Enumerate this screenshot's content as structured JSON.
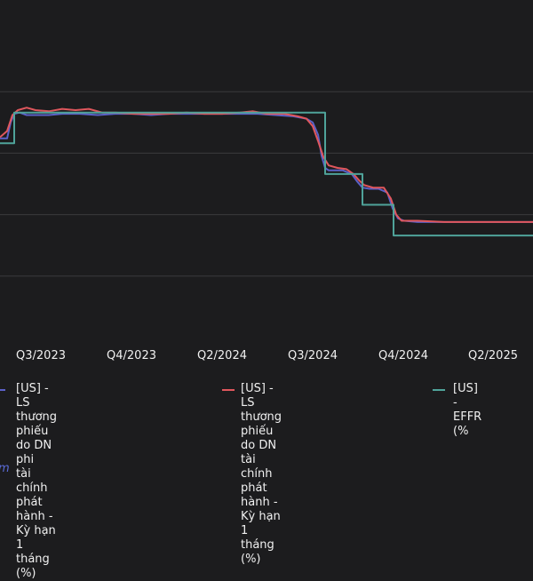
{
  "chart_data": {
    "type": "line",
    "x_tick_labels": [
      "Q3/2023",
      "Q4/2023",
      "Q2/2024",
      "Q3/2024",
      "Q4/2024",
      "Q2/2025"
    ],
    "ylim": [
      3.5,
      6.0
    ],
    "y_gridlines": [
      4.0,
      4.5,
      5.0,
      5.5
    ],
    "grid": "horizontal",
    "legend_position": "bottom",
    "series": [
      {
        "name": "[US] - LS thương phiếu do DN phi tài chính phát hành - Kỳ hạn 1 tháng (%)",
        "color": "#5b61c8",
        "points": [
          [
            0,
            5.12
          ],
          [
            8,
            5.12
          ],
          [
            12,
            5.25
          ],
          [
            16,
            5.32
          ],
          [
            22,
            5.33
          ],
          [
            30,
            5.31
          ],
          [
            40,
            5.31
          ],
          [
            55,
            5.31
          ],
          [
            70,
            5.32
          ],
          [
            90,
            5.32
          ],
          [
            110,
            5.31
          ],
          [
            130,
            5.32
          ],
          [
            150,
            5.32
          ],
          [
            170,
            5.31
          ],
          [
            190,
            5.32
          ],
          [
            210,
            5.32
          ],
          [
            230,
            5.32
          ],
          [
            250,
            5.32
          ],
          [
            270,
            5.32
          ],
          [
            290,
            5.32
          ],
          [
            310,
            5.31
          ],
          [
            330,
            5.3
          ],
          [
            345,
            5.28
          ],
          [
            352,
            5.25
          ],
          [
            358,
            5.15
          ],
          [
            362,
            4.98
          ],
          [
            366,
            4.88
          ],
          [
            370,
            4.86
          ],
          [
            376,
            4.86
          ],
          [
            386,
            4.86
          ],
          [
            396,
            4.83
          ],
          [
            402,
            4.77
          ],
          [
            408,
            4.72
          ],
          [
            416,
            4.71
          ],
          [
            426,
            4.71
          ],
          [
            436,
            4.68
          ],
          [
            442,
            4.55
          ],
          [
            448,
            4.47
          ],
          [
            455,
            4.45
          ],
          [
            470,
            4.44
          ],
          [
            490,
            4.44
          ],
          [
            510,
            4.44
          ],
          [
            530,
            4.44
          ],
          [
            550,
            4.44
          ],
          [
            570,
            4.44
          ],
          [
            600,
            4.44
          ]
        ]
      },
      {
        "name": "[US] - LS thương phiếu do DN tài chính phát hành - Kỳ hạn 1 tháng (%)",
        "color": "#e0575d",
        "points": [
          [
            0,
            5.13
          ],
          [
            8,
            5.18
          ],
          [
            14,
            5.31
          ],
          [
            20,
            5.35
          ],
          [
            30,
            5.37
          ],
          [
            40,
            5.35
          ],
          [
            55,
            5.34
          ],
          [
            70,
            5.36
          ],
          [
            85,
            5.35
          ],
          [
            100,
            5.36
          ],
          [
            115,
            5.33
          ],
          [
            130,
            5.33
          ],
          [
            150,
            5.32
          ],
          [
            170,
            5.32
          ],
          [
            190,
            5.32
          ],
          [
            210,
            5.33
          ],
          [
            230,
            5.32
          ],
          [
            250,
            5.32
          ],
          [
            270,
            5.33
          ],
          [
            285,
            5.34
          ],
          [
            300,
            5.32
          ],
          [
            320,
            5.32
          ],
          [
            335,
            5.3
          ],
          [
            345,
            5.28
          ],
          [
            352,
            5.22
          ],
          [
            358,
            5.1
          ],
          [
            364,
            4.97
          ],
          [
            370,
            4.9
          ],
          [
            380,
            4.88
          ],
          [
            390,
            4.87
          ],
          [
            398,
            4.83
          ],
          [
            404,
            4.78
          ],
          [
            410,
            4.74
          ],
          [
            420,
            4.72
          ],
          [
            432,
            4.72
          ],
          [
            440,
            4.63
          ],
          [
            446,
            4.5
          ],
          [
            452,
            4.45
          ],
          [
            470,
            4.45
          ],
          [
            500,
            4.44
          ],
          [
            530,
            4.44
          ],
          [
            560,
            4.44
          ],
          [
            600,
            4.44
          ]
        ]
      },
      {
        "name": "[US] - EFFR (%",
        "color": "#4fa39a",
        "points": [
          [
            0,
            5.08
          ],
          [
            16,
            5.08
          ],
          [
            16,
            5.33
          ],
          [
            366,
            5.33
          ],
          [
            366,
            4.83
          ],
          [
            408,
            4.83
          ],
          [
            408,
            4.58
          ],
          [
            443,
            4.58
          ],
          [
            443,
            4.33
          ],
          [
            600,
            4.33
          ]
        ]
      }
    ]
  },
  "legend": {
    "items": [
      {
        "text": "[US] - LS thương phiếu do DN phi\ntài chính phát hành - Kỳ hạn 1 tháng\n(%)",
        "color": "#5b61c8"
      },
      {
        "text": "[US] - LS thương phiếu do DN tài\nchính phát hành - Kỳ hạn 1 tháng\n(%)",
        "color": "#e0575d"
      },
      {
        "text": "[US] - EFFR (%",
        "color": "#4fa39a"
      }
    ]
  },
  "source_text": "m"
}
